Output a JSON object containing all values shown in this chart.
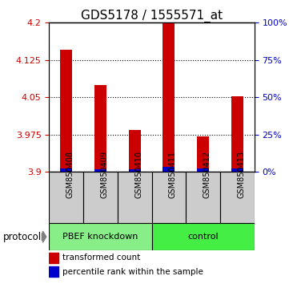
{
  "title": "GDS5178 / 1555571_at",
  "samples": [
    "GSM850408",
    "GSM850409",
    "GSM850410",
    "GSM850411",
    "GSM850412",
    "GSM850413"
  ],
  "red_values": [
    4.145,
    4.075,
    3.985,
    4.2,
    3.972,
    4.052
  ],
  "blue_pct": [
    2.5,
    1.5,
    1.5,
    3.5,
    2.0,
    2.5
  ],
  "y_min": 3.9,
  "y_max": 4.2,
  "y_ticks_left": [
    3.9,
    3.975,
    4.05,
    4.125,
    4.2
  ],
  "y_ticks_right": [
    0,
    25,
    50,
    75,
    100
  ],
  "group1_label": "PBEF knockdown",
  "group2_label": "control",
  "group1_color": "#88ee88",
  "group2_color": "#44ee44",
  "sample_box_color": "#cccccc",
  "protocol_label": "protocol",
  "red_color": "#cc0000",
  "blue_color": "#0000cc",
  "title_fontsize": 11,
  "bar_width": 0.35
}
